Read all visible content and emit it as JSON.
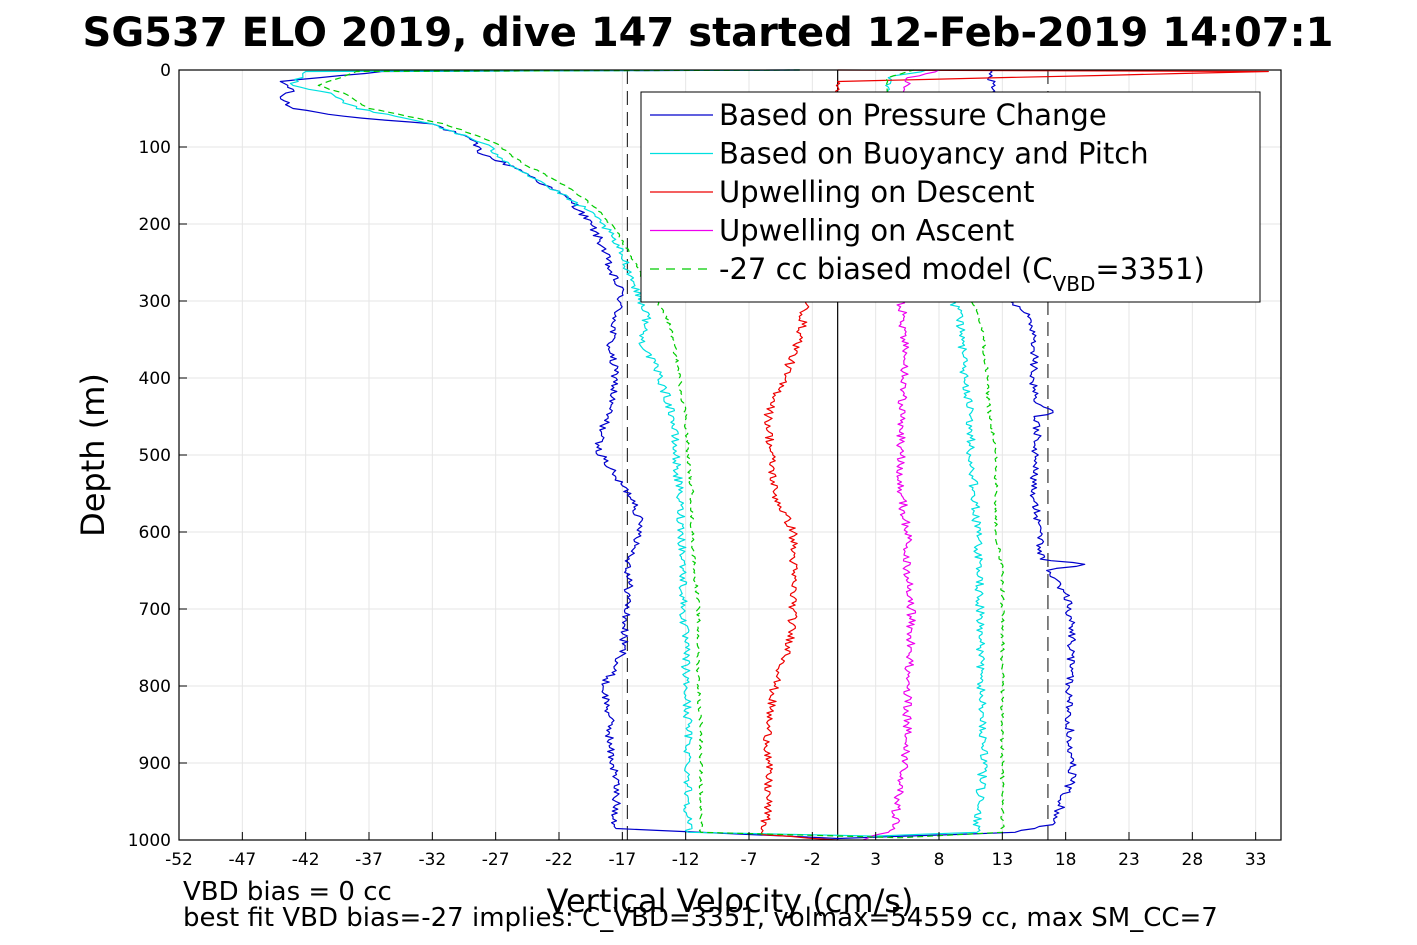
{
  "chart_data": {
    "type": "line",
    "title": "SG537 ELO 2019, dive 147 started 12-Feb-2019 14:07:1",
    "xlabel": "Vertical Velocity (cm/s)",
    "ylabel": "Depth (m)",
    "xlim": [
      -52,
      35
    ],
    "ylim": [
      0,
      1000
    ],
    "y_reversed": true,
    "grid": true,
    "xticks": [
      "-52",
      "-47",
      "-42",
      "-37",
      "-32",
      "-27",
      "-22",
      "-17",
      "-12",
      "-7",
      "-2",
      "3",
      "8",
      "13",
      "18",
      "23",
      "28",
      "33"
    ],
    "yticks": [
      "0",
      "100",
      "200",
      "300",
      "400",
      "500",
      "600",
      "700",
      "800",
      "900",
      "1000"
    ],
    "legend_position": "top-right",
    "legend": [
      {
        "label": "Based on Pressure Change",
        "color": "#0000cc",
        "style": "solid"
      },
      {
        "label": "Based on Buoyancy and Pitch",
        "color": "#00e0e0",
        "style": "solid"
      },
      {
        "label": "Upwelling on Descent",
        "color": "#ee0000",
        "style": "solid"
      },
      {
        "label": "Upwelling on Ascent",
        "color": "#ee00ee",
        "style": "solid"
      },
      {
        "label_main": "-27 cc biased model (C",
        "label_sub": "VBD",
        "label_end": "=3351)",
        "color": "#00cc00",
        "style": "dashed"
      }
    ],
    "reference_lines": [
      {
        "x": -16.6,
        "color": "#333333",
        "style": "dashed"
      },
      {
        "x": 16.6,
        "color": "#333333",
        "style": "dashed"
      },
      {
        "x": 0,
        "color": "#000000",
        "style": "solid"
      }
    ],
    "series": [
      {
        "name": "Based on Pressure Change",
        "color": "#0000cc",
        "style": "solid",
        "points": [
          [
            -3,
            0
          ],
          [
            -36,
            2
          ],
          [
            -44,
            15
          ],
          [
            -43,
            25
          ],
          [
            -44,
            35
          ],
          [
            -43,
            50
          ],
          [
            -39,
            60
          ],
          [
            -32,
            70
          ],
          [
            -29,
            90
          ],
          [
            -28,
            110
          ],
          [
            -25,
            130
          ],
          [
            -23,
            150
          ],
          [
            -21,
            170
          ],
          [
            -19.5,
            200
          ],
          [
            -18.5,
            230
          ],
          [
            -18,
            260
          ],
          [
            -17,
            290
          ],
          [
            -17.5,
            320
          ],
          [
            -18,
            360
          ],
          [
            -17.5,
            400
          ],
          [
            -18,
            440
          ],
          [
            -19,
            490
          ],
          [
            -17.5,
            530
          ],
          [
            -16,
            560
          ],
          [
            -15.5,
            600
          ],
          [
            -16.5,
            640
          ],
          [
            -16.5,
            680
          ],
          [
            -16.8,
            720
          ],
          [
            -17,
            760
          ],
          [
            -18.5,
            800
          ],
          [
            -18,
            840
          ],
          [
            -18,
            880
          ],
          [
            -17.5,
            920
          ],
          [
            -17.5,
            950
          ],
          [
            -17.5,
            985
          ],
          [
            0,
            998
          ],
          [
            14,
            990
          ],
          [
            17,
            980
          ],
          [
            17.5,
            960
          ],
          [
            18.5,
            920
          ],
          [
            18.5,
            880
          ],
          [
            18.2,
            840
          ],
          [
            18.3,
            800
          ],
          [
            18.5,
            760
          ],
          [
            18.5,
            720
          ],
          [
            18,
            680
          ],
          [
            16.5,
            650
          ],
          [
            19.5,
            642
          ],
          [
            16,
            635
          ],
          [
            16,
            600
          ],
          [
            15.5,
            560
          ],
          [
            15.5,
            520
          ],
          [
            15.8,
            480
          ],
          [
            15.5,
            450
          ],
          [
            17,
            445
          ],
          [
            15.5,
            430
          ],
          [
            15.5,
            400
          ],
          [
            15.5,
            360
          ],
          [
            15,
            320
          ],
          [
            13.5,
            300
          ],
          [
            12,
            0
          ]
        ]
      },
      {
        "name": "Based on Buoyancy and Pitch",
        "color": "#00e0e0",
        "style": "solid",
        "points": [
          [
            -3,
            0
          ],
          [
            -42,
            2
          ],
          [
            -43,
            20
          ],
          [
            -40,
            30
          ],
          [
            -38,
            50
          ],
          [
            -32,
            70
          ],
          [
            -28,
            95
          ],
          [
            -26,
            120
          ],
          [
            -23,
            150
          ],
          [
            -20,
            180
          ],
          [
            -18.5,
            200
          ],
          [
            -17,
            240
          ],
          [
            -16,
            280
          ],
          [
            -15,
            320
          ],
          [
            -15.5,
            350
          ],
          [
            -14,
            400
          ],
          [
            -13,
            450
          ],
          [
            -12.8,
            500
          ],
          [
            -12.5,
            550
          ],
          [
            -12.3,
            600
          ],
          [
            -12.2,
            650
          ],
          [
            -12.2,
            700
          ],
          [
            -12,
            750
          ],
          [
            -12,
            800
          ],
          [
            -11.8,
            850
          ],
          [
            -11.8,
            900
          ],
          [
            -11.8,
            950
          ],
          [
            -11.8,
            990
          ],
          [
            3,
            995
          ],
          [
            11,
            990
          ],
          [
            11.2,
            950
          ],
          [
            11.5,
            900
          ],
          [
            11.5,
            850
          ],
          [
            11.3,
            800
          ],
          [
            11.3,
            750
          ],
          [
            11.2,
            700
          ],
          [
            11.2,
            650
          ],
          [
            11,
            600
          ],
          [
            10.8,
            550
          ],
          [
            10.5,
            500
          ],
          [
            10.5,
            450
          ],
          [
            10,
            400
          ],
          [
            9.8,
            350
          ],
          [
            9.5,
            310
          ],
          [
            9,
            300
          ],
          [
            4,
            50
          ],
          [
            4,
            10
          ],
          [
            7,
            0
          ]
        ]
      },
      {
        "name": "Upwelling on Descent",
        "color": "#ee0000",
        "style": "solid",
        "points": [
          [
            0,
            0
          ],
          [
            34,
            2
          ],
          [
            0,
            15
          ],
          [
            0,
            45
          ],
          [
            -2.5,
            300
          ],
          [
            -3,
            350
          ],
          [
            -5.5,
            450
          ],
          [
            -5,
            550
          ],
          [
            -3.5,
            600
          ],
          [
            -3.5,
            650
          ],
          [
            -3.5,
            700
          ],
          [
            -3.8,
            750
          ],
          [
            -5,
            800
          ],
          [
            -5.5,
            850
          ],
          [
            -5.5,
            900
          ],
          [
            -5.5,
            960
          ],
          [
            -6,
            993
          ],
          [
            0,
            1000
          ]
        ]
      },
      {
        "name": "Upwelling on Ascent",
        "color": "#ee00ee",
        "style": "solid",
        "points": [
          [
            2,
            1000
          ],
          [
            4.5,
            985
          ],
          [
            4.7,
            950
          ],
          [
            5.3,
            900
          ],
          [
            5.5,
            850
          ],
          [
            5.5,
            800
          ],
          [
            5.8,
            750
          ],
          [
            5.8,
            700
          ],
          [
            5.5,
            650
          ],
          [
            5.5,
            600
          ],
          [
            5,
            550
          ],
          [
            5,
            500
          ],
          [
            5,
            450
          ],
          [
            5.2,
            400
          ],
          [
            5.3,
            350
          ],
          [
            5,
            300
          ],
          [
            5.5,
            20
          ],
          [
            5.5,
            10
          ],
          [
            8,
            0
          ]
        ]
      },
      {
        "name": "-27 cc biased model",
        "color": "#00cc00",
        "style": "dashed",
        "points": [
          [
            -3,
            0
          ],
          [
            -38,
            2
          ],
          [
            -41,
            20
          ],
          [
            -39,
            30
          ],
          [
            -37,
            50
          ],
          [
            -31,
            70
          ],
          [
            -27,
            95
          ],
          [
            -25,
            120
          ],
          [
            -21.5,
            150
          ],
          [
            -19,
            180
          ],
          [
            -17.5,
            210
          ],
          [
            -16,
            250
          ],
          [
            -15.2,
            280
          ],
          [
            -13.5,
            320
          ],
          [
            -13,
            350
          ],
          [
            -12.5,
            400
          ],
          [
            -12,
            450
          ],
          [
            -11.8,
            500
          ],
          [
            -11.5,
            550
          ],
          [
            -11.5,
            600
          ],
          [
            -11.3,
            650
          ],
          [
            -11,
            700
          ],
          [
            -11,
            750
          ],
          [
            -11,
            800
          ],
          [
            -10.8,
            850
          ],
          [
            -10.8,
            900
          ],
          [
            -10.8,
            950
          ],
          [
            -10.8,
            990
          ],
          [
            5,
            997
          ],
          [
            13,
            990
          ],
          [
            13,
            950
          ],
          [
            13,
            900
          ],
          [
            13,
            850
          ],
          [
            13,
            800
          ],
          [
            13,
            750
          ],
          [
            13,
            700
          ],
          [
            13,
            650
          ],
          [
            12.5,
            600
          ],
          [
            12.5,
            550
          ],
          [
            12.5,
            500
          ],
          [
            12,
            450
          ],
          [
            11.8,
            400
          ],
          [
            11.5,
            350
          ],
          [
            11,
            310
          ],
          [
            10.5,
            300
          ],
          [
            4,
            50
          ],
          [
            4,
            10
          ],
          [
            6,
            0
          ]
        ]
      }
    ]
  },
  "notes": {
    "line1": "VBD bias = 0 cc",
    "line2": "best fit VBD bias=-27 implies: C_VBD=3351, volmax=54559 cc, max SM_CC=7"
  }
}
